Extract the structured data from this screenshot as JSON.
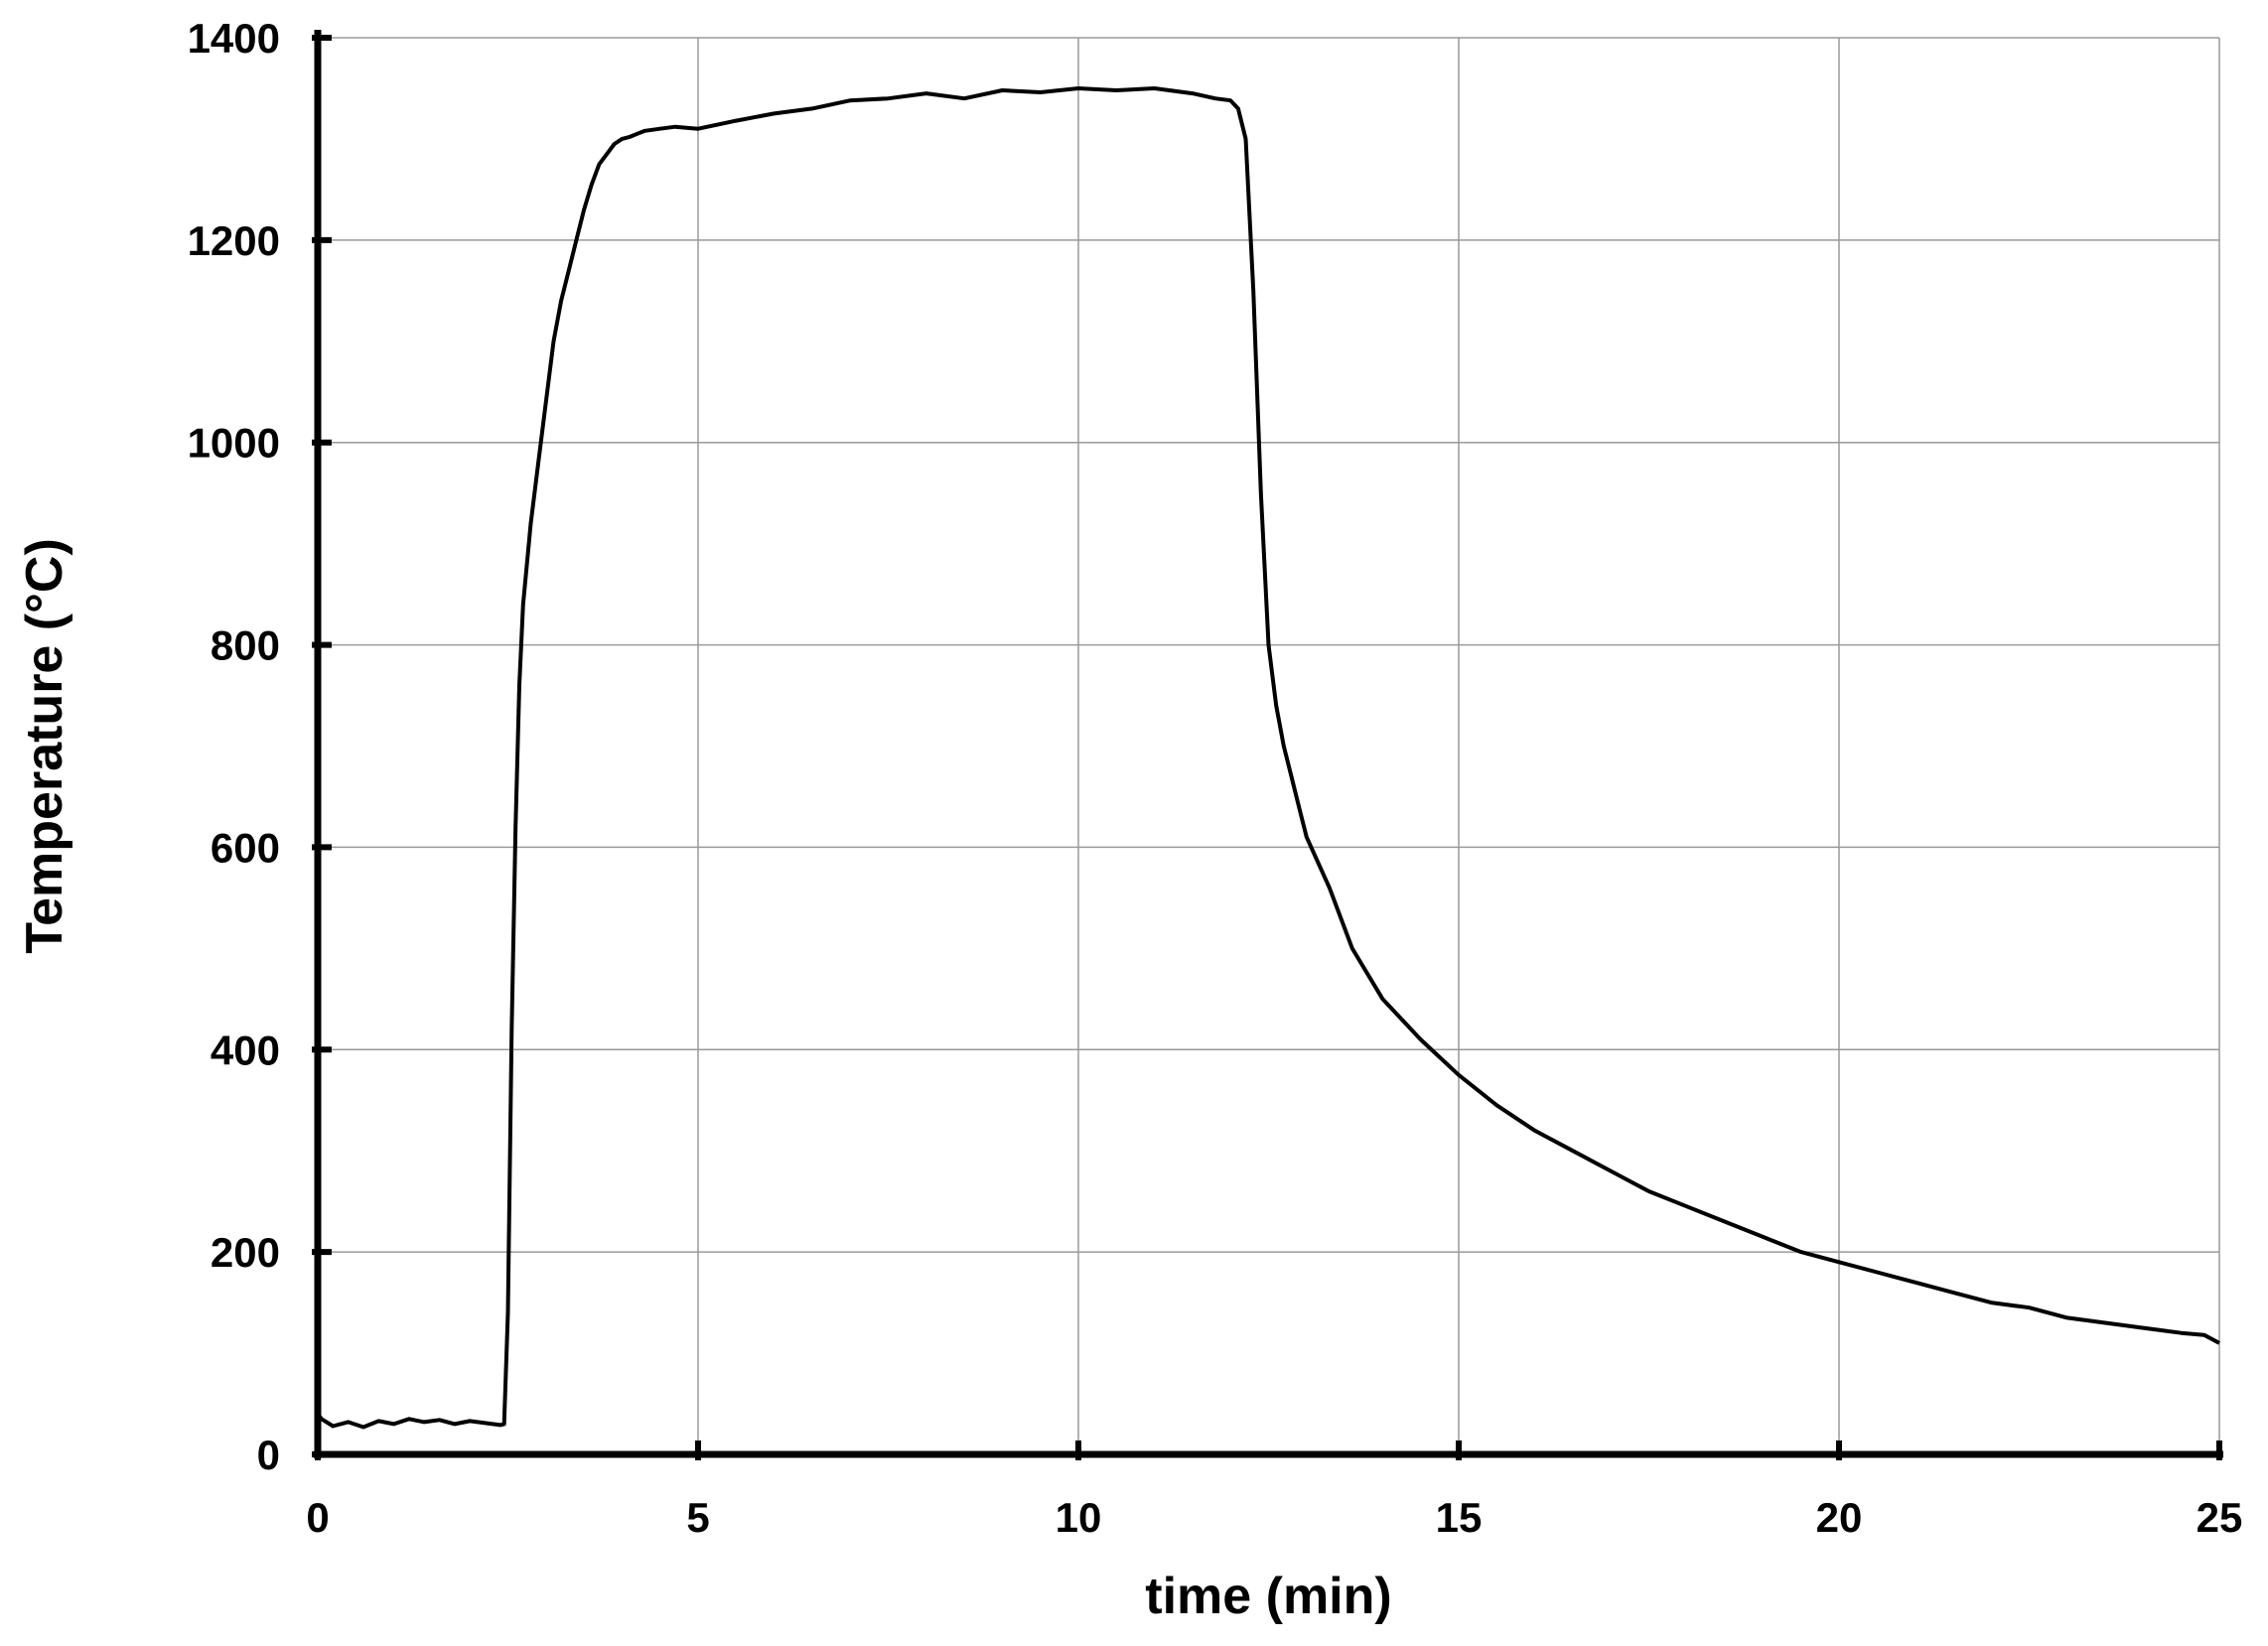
{
  "chart_data": {
    "type": "line",
    "title": "",
    "xlabel": "time (min)",
    "ylabel": "Temperature (°C)",
    "xlim": [
      0,
      25
    ],
    "ylim": [
      0,
      1400
    ],
    "x_ticks": [
      0,
      5,
      10,
      15,
      20,
      25
    ],
    "y_ticks": [
      0,
      200,
      400,
      600,
      800,
      1000,
      1200,
      1400
    ],
    "grid": true,
    "legend": "none",
    "line_color": "#000000",
    "grid_color": "#9a9a9a",
    "series": [
      {
        "x": [
          0.0,
          0.05,
          0.2,
          0.4,
          0.6,
          0.8,
          1.0,
          1.2,
          1.4,
          1.6,
          1.8,
          2.0,
          2.2,
          2.4,
          2.45,
          2.5,
          2.55,
          2.6,
          2.65,
          2.7,
          2.8,
          2.9,
          3.0,
          3.1,
          3.2,
          3.3,
          3.4,
          3.5,
          3.6,
          3.7,
          3.8,
          3.9,
          4.0,
          4.1,
          4.2,
          4.3,
          4.5,
          4.7,
          5.0,
          5.5,
          6.0,
          6.5,
          7.0,
          7.5,
          8.0,
          8.5,
          9.0,
          9.5,
          10.0,
          10.5,
          11.0,
          11.5,
          11.8,
          12.0,
          12.1,
          12.2,
          12.3,
          12.4,
          12.5,
          12.6,
          12.7,
          12.8,
          12.9,
          13.0,
          13.3,
          13.6,
          14.0,
          14.5,
          15.0,
          15.5,
          16.0,
          16.5,
          17.0,
          17.5,
          18.0,
          18.5,
          19.0,
          19.5,
          20.0,
          20.5,
          21.0,
          21.5,
          22.0,
          22.5,
          23.0,
          23.5,
          24.0,
          24.5,
          24.8,
          25.0
        ],
        "y": [
          40,
          35,
          28,
          32,
          27,
          33,
          30,
          35,
          32,
          34,
          30,
          33,
          31,
          29,
          30,
          140,
          420,
          620,
          760,
          840,
          920,
          980,
          1040,
          1100,
          1140,
          1170,
          1200,
          1230,
          1255,
          1275,
          1285,
          1295,
          1300,
          1302,
          1305,
          1308,
          1310,
          1312,
          1310,
          1318,
          1325,
          1330,
          1338,
          1340,
          1345,
          1340,
          1348,
          1346,
          1350,
          1348,
          1350,
          1345,
          1340,
          1338,
          1330,
          1300,
          1150,
          950,
          800,
          740,
          700,
          670,
          640,
          610,
          560,
          500,
          450,
          410,
          375,
          345,
          320,
          300,
          280,
          260,
          245,
          230,
          215,
          200,
          190,
          180,
          170,
          160,
          150,
          145,
          135,
          130,
          125,
          120,
          118,
          110
        ]
      }
    ]
  }
}
